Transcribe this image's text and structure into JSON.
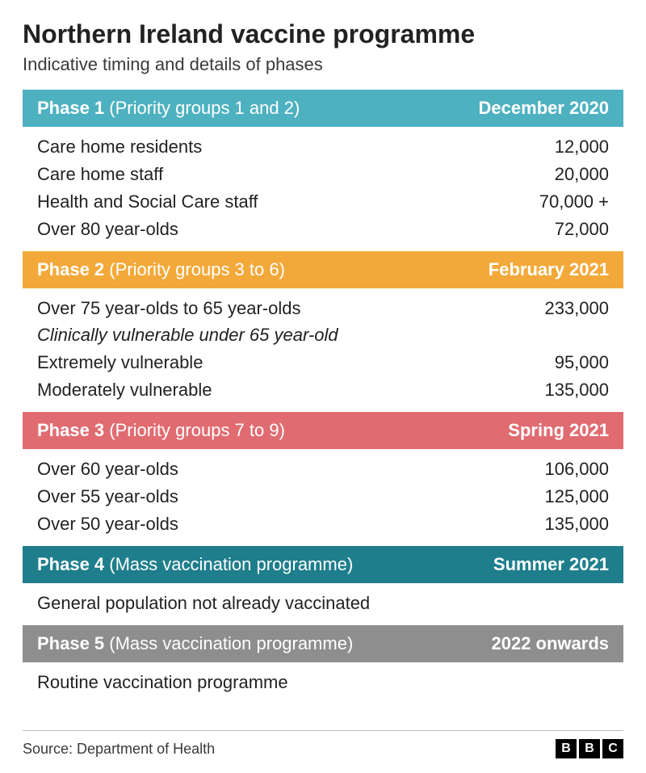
{
  "title": "Northern Ireland vaccine programme",
  "subtitle": "Indicative timing and details of phases",
  "typography": {
    "title_fontsize": 32,
    "subtitle_fontsize": 22,
    "header_fontsize": 22,
    "row_fontsize": 22,
    "footer_fontsize": 18,
    "title_color": "#222222",
    "text_color": "#222222",
    "header_text_color": "#ffffff"
  },
  "background_color": "#ffffff",
  "phases": [
    {
      "name": "Phase 1",
      "detail": "(Priority groups 1 and 2)",
      "period": "December 2020",
      "color": "#4eb1c0",
      "rows": [
        {
          "label": "Care home residents",
          "value": "12,000",
          "italic": false
        },
        {
          "label": "Care home staff",
          "value": "20,000",
          "italic": false
        },
        {
          "label": "Health and Social Care staff",
          "value": "70,000 +",
          "italic": false
        },
        {
          "label": "Over 80 year-olds",
          "value": "72,000",
          "italic": false
        }
      ]
    },
    {
      "name": "Phase 2",
      "detail": "(Priority groups 3 to 6)",
      "period": "February 2021",
      "color": "#f3a93a",
      "rows": [
        {
          "label": "Over 75 year-olds to 65 year-olds",
          "value": "233,000",
          "italic": false
        },
        {
          "label": "Clinically vulnerable under 65 year-old",
          "value": "",
          "italic": true
        },
        {
          "label": "Extremely vulnerable",
          "value": "95,000",
          "italic": false
        },
        {
          "label": "Moderately vulnerable",
          "value": "135,000",
          "italic": false
        }
      ]
    },
    {
      "name": "Phase 3",
      "detail": "(Priority groups 7 to 9)",
      "period": "Spring 2021",
      "color": "#e06c72",
      "rows": [
        {
          "label": "Over 60 year-olds",
          "value": "106,000",
          "italic": false
        },
        {
          "label": "Over 55 year-olds",
          "value": "125,000",
          "italic": false
        },
        {
          "label": "Over 50 year-olds",
          "value": "135,000",
          "italic": false
        }
      ]
    },
    {
      "name": "Phase 4",
      "detail": "(Mass vaccination programme)",
      "period": "Summer 2021",
      "color": "#1f7e8c",
      "rows": [
        {
          "label": "General population not already vaccinated",
          "value": "",
          "italic": false
        }
      ]
    },
    {
      "name": "Phase 5",
      "detail": "(Mass vaccination programme)",
      "period": "2022 onwards",
      "color": "#8e8e8e",
      "rows": [
        {
          "label": "Routine vaccination programme",
          "value": "",
          "italic": false
        }
      ]
    }
  ],
  "footer": {
    "source": "Source: Department of Health",
    "logo_letters": [
      "B",
      "B",
      "C"
    ],
    "logo_bg": "#000000",
    "logo_fg": "#ffffff",
    "divider_color": "#bcbcbc"
  }
}
